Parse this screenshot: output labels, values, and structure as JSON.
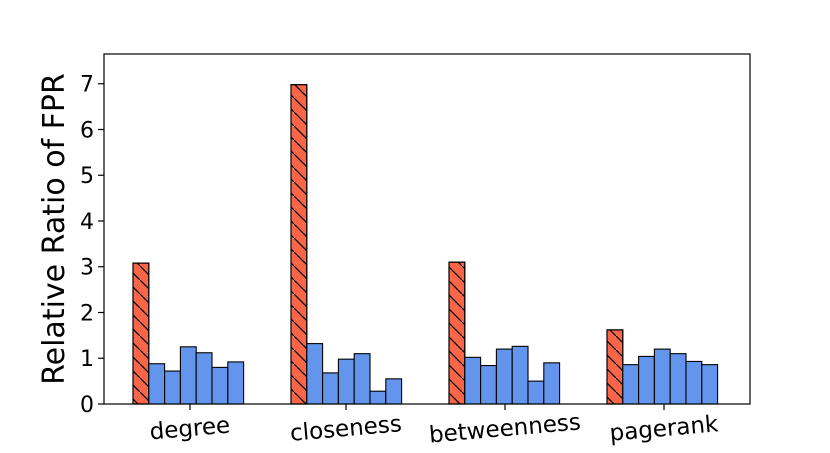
{
  "chart_data": {
    "type": "bar",
    "ylabel": "Relative Ratio of FPR",
    "xlabel": "",
    "ylim": [
      0,
      7.65
    ],
    "yticks": [
      "0",
      "1",
      "2",
      "3",
      "4",
      "5",
      "6",
      "7"
    ],
    "categories": [
      "degree",
      "closeness",
      "betweenness",
      "pagerank"
    ],
    "grouped_values": [
      [
        3.08,
        0.88,
        0.72,
        1.25,
        1.12,
        0.8,
        0.92
      ],
      [
        6.98,
        1.32,
        0.68,
        0.98,
        1.1,
        0.28,
        0.55
      ],
      [
        3.1,
        1.02,
        0.84,
        1.2,
        1.26,
        0.5,
        0.9
      ],
      [
        1.62,
        0.86,
        1.04,
        1.2,
        1.1,
        0.93,
        0.86
      ]
    ],
    "highlight_color": "#fb6649",
    "bar_color": "#6495ed",
    "edge_color": "#000000",
    "highlight_hatch": "\\",
    "grid": false
  }
}
